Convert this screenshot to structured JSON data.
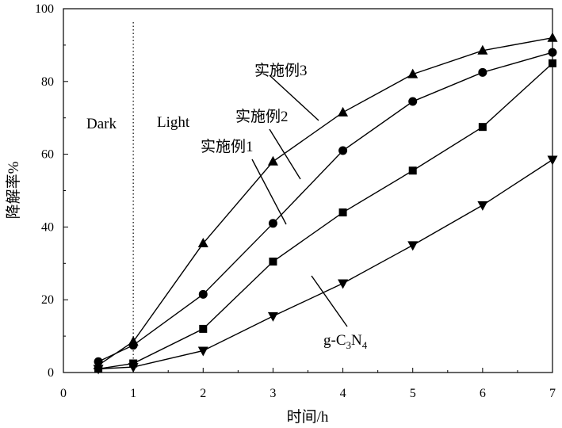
{
  "chart_data": {
    "type": "line",
    "xlabel": "时间/h",
    "ylabel": "降解率%",
    "xlim": [
      0,
      7
    ],
    "ylim": [
      0,
      100
    ],
    "xticks": [
      0,
      1,
      2,
      3,
      4,
      5,
      6,
      7
    ],
    "yticks": [
      0,
      20,
      40,
      60,
      80,
      100
    ],
    "grid": false,
    "legend": "none",
    "divider": {
      "x": 1,
      "style": "dotted"
    },
    "regions": {
      "dark": "Dark",
      "light": "Light"
    },
    "series": [
      {
        "name": "实施例3",
        "marker": "triangle-up",
        "x": [
          0.5,
          1,
          2,
          3,
          4,
          5,
          6,
          7
        ],
        "y": [
          2,
          8.5,
          35.5,
          58,
          71.5,
          82,
          88.5,
          92
        ]
      },
      {
        "name": "实施例2",
        "marker": "circle",
        "x": [
          0.5,
          1,
          2,
          3,
          4,
          5,
          6,
          7
        ],
        "y": [
          3,
          7.5,
          21.5,
          41,
          61,
          74.5,
          82.5,
          88
        ]
      },
      {
        "name": "实施例1",
        "marker": "square",
        "x": [
          0.5,
          1,
          2,
          3,
          4,
          5,
          6,
          7
        ],
        "y": [
          1,
          2.5,
          12,
          30.5,
          44,
          55.5,
          67.5,
          85
        ]
      },
      {
        "name_prefix": "g-C",
        "name_sub1": "3",
        "name_mid": "N",
        "name_sub2": "4",
        "marker": "triangle-down",
        "x": [
          0.5,
          1,
          2,
          3,
          4,
          5,
          6,
          7
        ],
        "y": [
          1,
          1.5,
          6,
          15.5,
          24.5,
          35,
          46,
          58.5
        ]
      }
    ]
  }
}
